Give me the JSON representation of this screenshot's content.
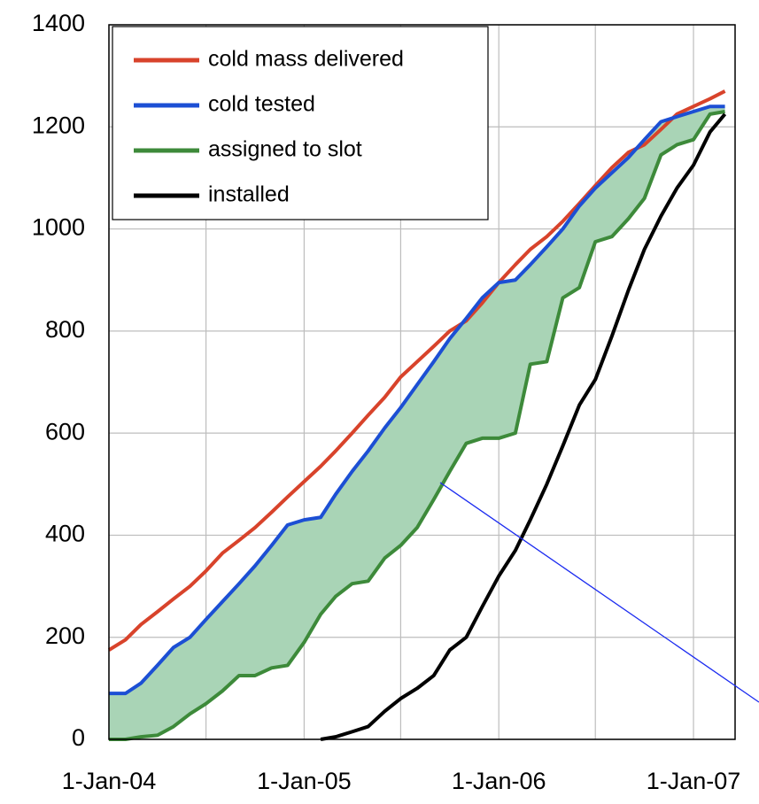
{
  "chart_data": {
    "type": "line",
    "x": [
      "2004-01-01",
      "2004-02-01",
      "2004-03-01",
      "2004-04-01",
      "2004-05-01",
      "2004-06-01",
      "2004-07-01",
      "2004-08-01",
      "2004-09-01",
      "2004-10-01",
      "2004-11-01",
      "2004-12-01",
      "2005-01-01",
      "2005-02-01",
      "2005-03-01",
      "2005-04-01",
      "2005-05-01",
      "2005-06-01",
      "2005-07-01",
      "2005-08-01",
      "2005-09-01",
      "2005-10-01",
      "2005-11-01",
      "2005-12-01",
      "2006-01-01",
      "2006-02-01",
      "2006-03-01",
      "2006-04-01",
      "2006-05-01",
      "2006-06-01",
      "2006-07-01",
      "2006-08-01",
      "2006-09-01",
      "2006-10-01",
      "2006-11-01",
      "2006-12-01",
      "2007-01-01",
      "2007-02-01",
      "2007-03-01"
    ],
    "series": [
      {
        "name": "cold mass delivered",
        "color": "#d8432b",
        "values": [
          175,
          195,
          225,
          250,
          275,
          300,
          330,
          365,
          390,
          415,
          445,
          475,
          505,
          535,
          565,
          600,
          635,
          670,
          710,
          740,
          770,
          800,
          820,
          855,
          895,
          930,
          960,
          985,
          1015,
          1050,
          1085,
          1120,
          1150,
          1165,
          1195,
          1225,
          1240,
          1255,
          1270
        ]
      },
      {
        "name": "cold tested",
        "color": "#1c4fd4",
        "values": [
          90,
          90,
          110,
          145,
          180,
          200,
          235,
          270,
          305,
          340,
          380,
          420,
          430,
          435,
          480,
          525,
          565,
          610,
          650,
          695,
          740,
          785,
          825,
          865,
          895,
          900,
          930,
          965,
          1000,
          1045,
          1080,
          1110,
          1140,
          1175,
          1210,
          1220,
          1230,
          1240,
          1240
        ]
      },
      {
        "name": "assigned to slot",
        "color": "#3d8a3a",
        "values": [
          0,
          0,
          5,
          8,
          25,
          50,
          70,
          95,
          125,
          125,
          140,
          145,
          190,
          245,
          280,
          305,
          310,
          355,
          380,
          415,
          470,
          525,
          580,
          590,
          590,
          600,
          735,
          740,
          865,
          885,
          975,
          985,
          1020,
          1060,
          1145,
          1165,
          1175,
          1225,
          1230
        ]
      },
      {
        "name": "installed",
        "color": "#000000",
        "values": [
          null,
          null,
          null,
          null,
          null,
          null,
          null,
          null,
          null,
          null,
          null,
          null,
          null,
          0,
          5,
          15,
          25,
          55,
          80,
          100,
          125,
          175,
          200,
          260,
          320,
          370,
          430,
          500,
          575,
          655,
          705,
          790,
          880,
          960,
          1025,
          1080,
          1125,
          1190,
          1225
        ]
      }
    ],
    "fill_between": {
      "upper": "cold tested",
      "lower": "assigned to slot",
      "color": "#a9d4b6"
    },
    "xlim": [
      "2004-01-01",
      "2007-03-20"
    ],
    "xticks": [
      {
        "value": "2004-01-01",
        "label": "1-Jan-04"
      },
      {
        "value": "2004-07-01",
        "label": null
      },
      {
        "value": "2005-01-01",
        "label": "1-Jan-05"
      },
      {
        "value": "2005-07-01",
        "label": null
      },
      {
        "value": "2006-01-01",
        "label": "1-Jan-06"
      },
      {
        "value": "2006-07-01",
        "label": null
      },
      {
        "value": "2007-01-01",
        "label": "1-Jan-07"
      }
    ],
    "ylim": [
      0,
      1400
    ],
    "yticks": [
      0,
      200,
      400,
      600,
      800,
      1000,
      1200,
      1400
    ],
    "grid": true,
    "legend": "upper left"
  }
}
